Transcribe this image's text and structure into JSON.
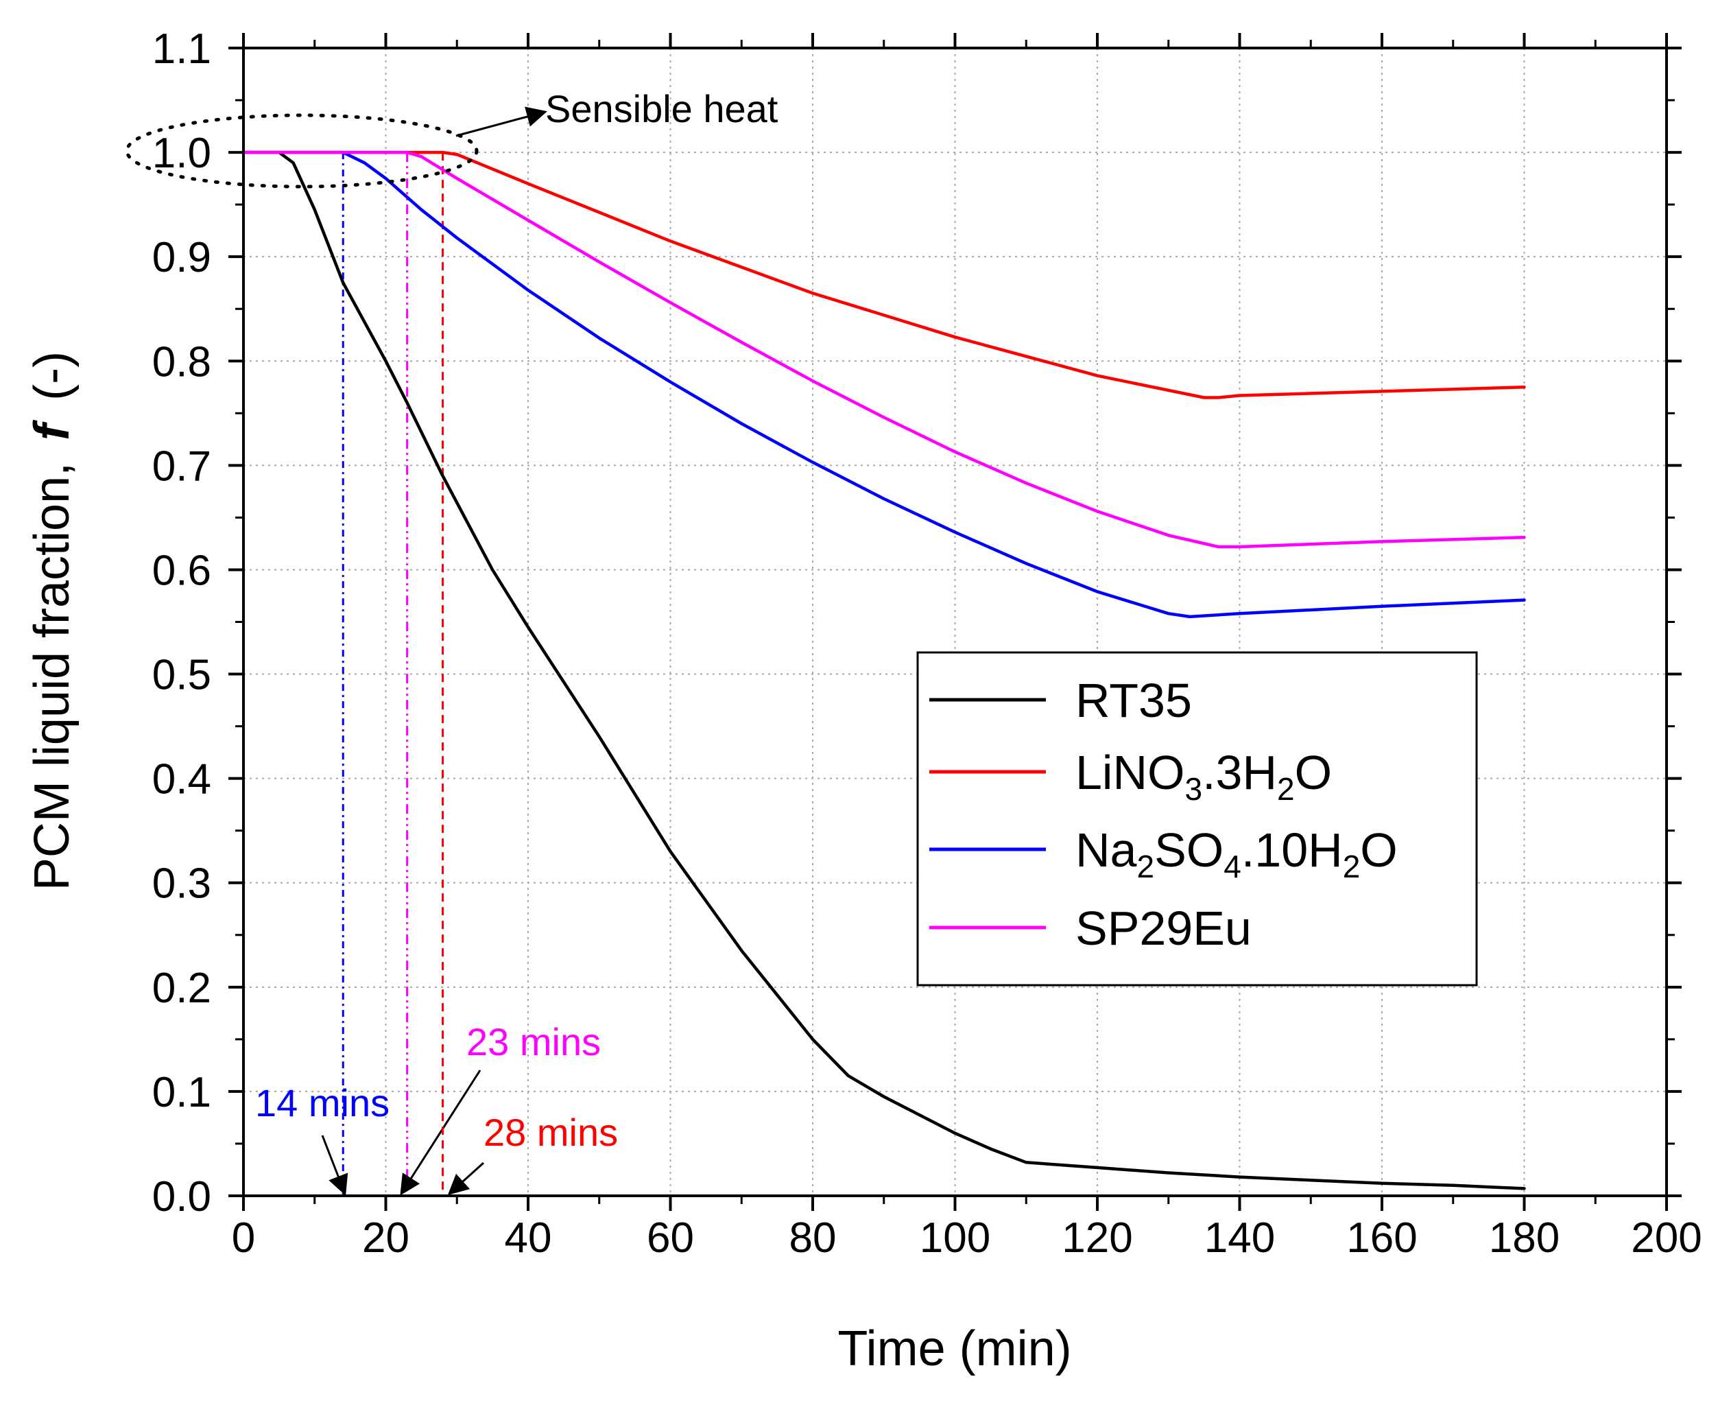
{
  "chart_data": {
    "type": "line",
    "title": "",
    "xlabel": "Time (min)",
    "ylabel": "PCM liquid fraction, f (-)",
    "ylabel_parts": {
      "main": "PCM liquid fraction,",
      "symbol": "f",
      "unit": "(-)"
    },
    "xlim": [
      0,
      200
    ],
    "ylim": [
      0,
      1.1
    ],
    "xticks": [
      "0",
      "20",
      "40",
      "60",
      "80",
      "100",
      "120",
      "140",
      "160",
      "180",
      "200"
    ],
    "yticks": [
      "0.0",
      "0.1",
      "0.2",
      "0.3",
      "0.4",
      "0.5",
      "0.6",
      "0.7",
      "0.8",
      "0.9",
      "1.0",
      "1.1"
    ],
    "grid": true,
    "legend_position": "center-right",
    "series": [
      {
        "name": "RT35",
        "legend": [
          {
            "t": "RT35"
          }
        ],
        "color": "#000000",
        "x": [
          0,
          5,
          7,
          10,
          14,
          20,
          23,
          28,
          35,
          40,
          50,
          60,
          70,
          80,
          85,
          90,
          100,
          105,
          110,
          120,
          130,
          140,
          150,
          160,
          170,
          180
        ],
        "y": [
          1.0,
          1.0,
          0.99,
          0.945,
          0.875,
          0.8,
          0.76,
          0.69,
          0.6,
          0.545,
          0.44,
          0.33,
          0.235,
          0.15,
          0.115,
          0.095,
          0.06,
          0.045,
          0.032,
          0.027,
          0.022,
          0.018,
          0.015,
          0.012,
          0.01,
          0.007
        ]
      },
      {
        "name": "LiNO3.3H2O",
        "legend": [
          {
            "t": "LiNO"
          },
          {
            "t": "3",
            "sub": true
          },
          {
            "t": ".3H"
          },
          {
            "t": "2",
            "sub": true
          },
          {
            "t": "O"
          }
        ],
        "color": "#ff0000",
        "x": [
          0,
          28,
          30,
          40,
          60,
          80,
          100,
          120,
          135,
          137,
          140,
          160,
          180
        ],
        "y": [
          1.0,
          1.0,
          0.998,
          0.97,
          0.915,
          0.865,
          0.823,
          0.786,
          0.765,
          0.765,
          0.767,
          0.771,
          0.775
        ]
      },
      {
        "name": "Na2SO4.10H2O",
        "legend": [
          {
            "t": "Na"
          },
          {
            "t": "2",
            "sub": true
          },
          {
            "t": "SO"
          },
          {
            "t": "4",
            "sub": true
          },
          {
            "t": ".10H"
          },
          {
            "t": "2",
            "sub": true
          },
          {
            "t": "O"
          }
        ],
        "color": "#0000ff",
        "x": [
          0,
          14,
          17,
          20,
          25,
          30,
          40,
          50,
          60,
          70,
          80,
          90,
          100,
          110,
          120,
          130,
          133,
          140,
          160,
          180
        ],
        "y": [
          1.0,
          1.0,
          0.99,
          0.975,
          0.945,
          0.918,
          0.868,
          0.822,
          0.78,
          0.74,
          0.703,
          0.668,
          0.636,
          0.606,
          0.579,
          0.558,
          0.555,
          0.558,
          0.565,
          0.571
        ]
      },
      {
        "name": "SP29Eu",
        "legend": [
          {
            "t": "SP29Eu"
          }
        ],
        "color": "#ff00ff",
        "x": [
          0,
          23,
          25,
          30,
          40,
          50,
          60,
          70,
          80,
          90,
          100,
          110,
          120,
          130,
          137,
          140,
          160,
          180
        ],
        "y": [
          1.0,
          1.0,
          0.996,
          0.975,
          0.935,
          0.895,
          0.856,
          0.818,
          0.781,
          0.746,
          0.713,
          0.683,
          0.656,
          0.633,
          0.622,
          0.622,
          0.627,
          0.631
        ]
      }
    ],
    "markers": [
      {
        "name": "Na2SO4.10H2O onset",
        "x": 14,
        "color": "#0000ff",
        "label": "14 mins"
      },
      {
        "name": "SP29Eu onset",
        "x": 23,
        "color": "#ff00ff",
        "label": "23 mins"
      },
      {
        "name": "LiNO3.3H2O onset",
        "x": 28,
        "color": "#ff0000",
        "label": "28 mins"
      }
    ],
    "annotations": [
      {
        "text": "Sensible heat",
        "color": "#000000",
        "points_to_x": 0,
        "points_to_y": 1.0
      }
    ]
  }
}
